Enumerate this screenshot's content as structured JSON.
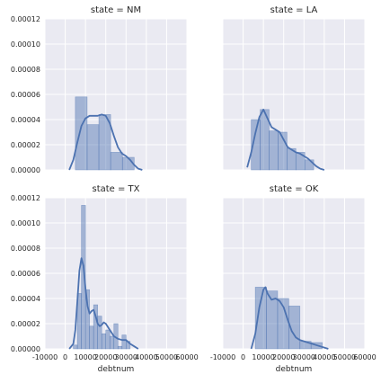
{
  "colors": {
    "panel_bg": "#eaeaf2",
    "grid": "#ffffff",
    "bar_fill": "#4c72b0",
    "bar_alpha": 0.45,
    "bar_edge": "#4c72b0",
    "kde_line": "#4c72b0"
  },
  "chart_data": {
    "type": "facet-histogram",
    "xlabel": "debtnum",
    "xlim": [
      -10000,
      60000
    ],
    "ylim": [
      0,
      0.00012
    ],
    "grid": true,
    "x_ticks": [
      {
        "v": -10000,
        "label": "-10000"
      },
      {
        "v": 0,
        "label": "0"
      },
      {
        "v": 10000,
        "label": "10000"
      },
      {
        "v": 20000,
        "label": "20000"
      },
      {
        "v": 30000,
        "label": "30000"
      },
      {
        "v": 40000,
        "label": "40000"
      },
      {
        "v": 50000,
        "label": "50000"
      },
      {
        "v": 60000,
        "label": "60000"
      }
    ],
    "y_ticks": [
      {
        "v": 0,
        "label": "0.00000"
      },
      {
        "v": 2e-05,
        "label": "0.00002"
      },
      {
        "v": 4e-05,
        "label": "0.00004"
      },
      {
        "v": 6e-05,
        "label": "0.00006"
      },
      {
        "v": 8e-05,
        "label": "0.00008"
      },
      {
        "v": 0.0001,
        "label": "0.00010"
      },
      {
        "v": 0.00012,
        "label": "0.00012"
      }
    ],
    "panels": [
      {
        "title": "state = NM",
        "bins": [
          {
            "x0": 5000,
            "x1": 10800,
            "h": 5.8e-05
          },
          {
            "x0": 10800,
            "x1": 16600,
            "h": 3.6e-05
          },
          {
            "x0": 16600,
            "x1": 22400,
            "h": 4.4e-05
          },
          {
            "x0": 22400,
            "x1": 28200,
            "h": 1.4e-05
          },
          {
            "x0": 28200,
            "x1": 34000,
            "h": 1e-05
          }
        ],
        "kde": [
          [
            2000,
            0
          ],
          [
            4000,
            8e-06
          ],
          [
            6000,
            2.2e-05
          ],
          [
            8000,
            3.5e-05
          ],
          [
            10000,
            4.1e-05
          ],
          [
            12000,
            4.3e-05
          ],
          [
            14000,
            4.3e-05
          ],
          [
            16000,
            4.3e-05
          ],
          [
            18000,
            4.4e-05
          ],
          [
            20000,
            4.3e-05
          ],
          [
            22000,
            3.7e-05
          ],
          [
            24000,
            2.7e-05
          ],
          [
            26000,
            1.8e-05
          ],
          [
            28000,
            1.3e-05
          ],
          [
            30000,
            1.1e-05
          ],
          [
            32000,
            8e-06
          ],
          [
            34000,
            4e-06
          ],
          [
            36000,
            1e-06
          ],
          [
            38000,
            0
          ]
        ]
      },
      {
        "title": "state = LA",
        "bins": [
          {
            "x0": 4000,
            "x1": 8400,
            "h": 4e-05
          },
          {
            "x0": 8400,
            "x1": 12800,
            "h": 4.8e-05
          },
          {
            "x0": 12800,
            "x1": 17200,
            "h": 3.1e-05
          },
          {
            "x0": 17200,
            "x1": 21600,
            "h": 3e-05
          },
          {
            "x0": 21600,
            "x1": 26000,
            "h": 1.7e-05
          },
          {
            "x0": 26000,
            "x1": 30400,
            "h": 1.4e-05
          },
          {
            "x0": 30400,
            "x1": 34800,
            "h": 8e-06
          }
        ],
        "kde": [
          [
            2000,
            2e-06
          ],
          [
            4000,
            1.4e-05
          ],
          [
            6000,
            2.9e-05
          ],
          [
            8000,
            4.2e-05
          ],
          [
            10000,
            4.8e-05
          ],
          [
            12000,
            4.1e-05
          ],
          [
            14000,
            3.4e-05
          ],
          [
            16000,
            3.2e-05
          ],
          [
            18000,
            3e-05
          ],
          [
            20000,
            2.4e-05
          ],
          [
            22000,
            1.8e-05
          ],
          [
            24000,
            1.6e-05
          ],
          [
            26000,
            1.4e-05
          ],
          [
            28000,
            1.3e-05
          ],
          [
            30000,
            1.1e-05
          ],
          [
            32000,
            9e-06
          ],
          [
            34000,
            6e-06
          ],
          [
            36000,
            3e-06
          ],
          [
            38000,
            1e-06
          ],
          [
            40000,
            0
          ]
        ]
      },
      {
        "title": "state = TX",
        "bins": [
          {
            "x0": 4000,
            "x1": 6000,
            "h": 3e-06
          },
          {
            "x0": 6000,
            "x1": 8000,
            "h": 4.4e-05
          },
          {
            "x0": 8000,
            "x1": 10000,
            "h": 0.000114
          },
          {
            "x0": 10000,
            "x1": 12000,
            "h": 4.7e-05
          },
          {
            "x0": 12000,
            "x1": 14000,
            "h": 1.8e-05
          },
          {
            "x0": 14000,
            "x1": 16000,
            "h": 3.5e-05
          },
          {
            "x0": 16000,
            "x1": 18000,
            "h": 2.6e-05
          },
          {
            "x0": 18000,
            "x1": 20000,
            "h": 1.2e-05
          },
          {
            "x0": 20000,
            "x1": 22000,
            "h": 1.5e-05
          },
          {
            "x0": 22000,
            "x1": 24000,
            "h": 1e-05
          },
          {
            "x0": 24000,
            "x1": 26000,
            "h": 2e-05
          },
          {
            "x0": 26000,
            "x1": 28000,
            "h": 2e-06
          },
          {
            "x0": 28000,
            "x1": 30000,
            "h": 1.1e-05
          },
          {
            "x0": 30000,
            "x1": 32000,
            "h": 6e-06
          }
        ],
        "kde": [
          [
            2000,
            0
          ],
          [
            4000,
            4e-06
          ],
          [
            5000,
            1.5e-05
          ],
          [
            6000,
            3.8e-05
          ],
          [
            7000,
            6.2e-05
          ],
          [
            8000,
            7.2e-05
          ],
          [
            9000,
            6.6e-05
          ],
          [
            10000,
            4.8e-05
          ],
          [
            11000,
            3.4e-05
          ],
          [
            12000,
            2.8e-05
          ],
          [
            13000,
            3e-05
          ],
          [
            14000,
            3.1e-05
          ],
          [
            15000,
            2.6e-05
          ],
          [
            16000,
            2e-05
          ],
          [
            17000,
            1.8e-05
          ],
          [
            18000,
            1.9e-05
          ],
          [
            19000,
            2.1e-05
          ],
          [
            20000,
            2e-05
          ],
          [
            22000,
            1.5e-05
          ],
          [
            24000,
            1e-05
          ],
          [
            26000,
            8e-06
          ],
          [
            28000,
            7e-06
          ],
          [
            30000,
            7e-06
          ],
          [
            32000,
            4e-06
          ],
          [
            34000,
            2e-06
          ],
          [
            36000,
            0
          ]
        ]
      },
      {
        "title": "state = OK",
        "bins": [
          {
            "x0": 6000,
            "x1": 11500,
            "h": 4.9e-05
          },
          {
            "x0": 11500,
            "x1": 17000,
            "h": 4.6e-05
          },
          {
            "x0": 17000,
            "x1": 22500,
            "h": 4e-05
          },
          {
            "x0": 22500,
            "x1": 28000,
            "h": 3.4e-05
          },
          {
            "x0": 28000,
            "x1": 33500,
            "h": 6e-06
          },
          {
            "x0": 33500,
            "x1": 39000,
            "h": 5e-06
          }
        ],
        "kde": [
          [
            4000,
            0
          ],
          [
            6000,
            1.2e-05
          ],
          [
            8000,
            3.3e-05
          ],
          [
            10000,
            4.7e-05
          ],
          [
            11000,
            4.9e-05
          ],
          [
            12000,
            4.4e-05
          ],
          [
            14000,
            3.9e-05
          ],
          [
            16000,
            4e-05
          ],
          [
            18000,
            3.8e-05
          ],
          [
            20000,
            3.3e-05
          ],
          [
            22000,
            2.3e-05
          ],
          [
            24000,
            1.4e-05
          ],
          [
            26000,
            9e-06
          ],
          [
            28000,
            7e-06
          ],
          [
            30000,
            6e-06
          ],
          [
            32000,
            5e-06
          ],
          [
            34000,
            4e-06
          ],
          [
            36000,
            3e-06
          ],
          [
            38000,
            2e-06
          ],
          [
            40000,
            1e-06
          ],
          [
            42000,
            0
          ]
        ]
      }
    ]
  }
}
